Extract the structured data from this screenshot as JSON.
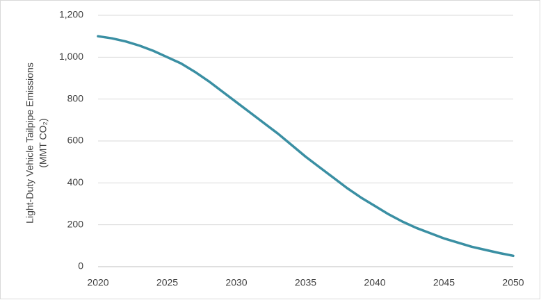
{
  "chart_data": {
    "type": "line",
    "y_label": [
      "Light-Duty Vehicle Tailpipe Emissions",
      "(MMT CO₂)"
    ],
    "x": [
      2020,
      2021,
      2022,
      2023,
      2024,
      2025,
      2026,
      2027,
      2028,
      2029,
      2030,
      2031,
      2032,
      2033,
      2034,
      2035,
      2036,
      2037,
      2038,
      2039,
      2040,
      2041,
      2042,
      2043,
      2044,
      2045,
      2046,
      2047,
      2048,
      2049,
      2050
    ],
    "values": [
      1100,
      1090,
      1075,
      1055,
      1030,
      1000,
      970,
      930,
      885,
      835,
      785,
      735,
      685,
      635,
      580,
      525,
      475,
      425,
      375,
      330,
      290,
      250,
      215,
      185,
      160,
      135,
      115,
      95,
      80,
      65,
      52
    ],
    "color": "#3a8fa3",
    "xlim": [
      2020,
      2050
    ],
    "xticks": [
      2020,
      2025,
      2030,
      2035,
      2040,
      2045,
      2050
    ],
    "ylim": [
      0,
      1200
    ],
    "yticks": [
      0,
      200,
      400,
      600,
      800,
      {
        "value": 1000,
        "label": "1,000"
      },
      {
        "value": 1200,
        "label": "1,200"
      }
    ],
    "grid": true
  }
}
